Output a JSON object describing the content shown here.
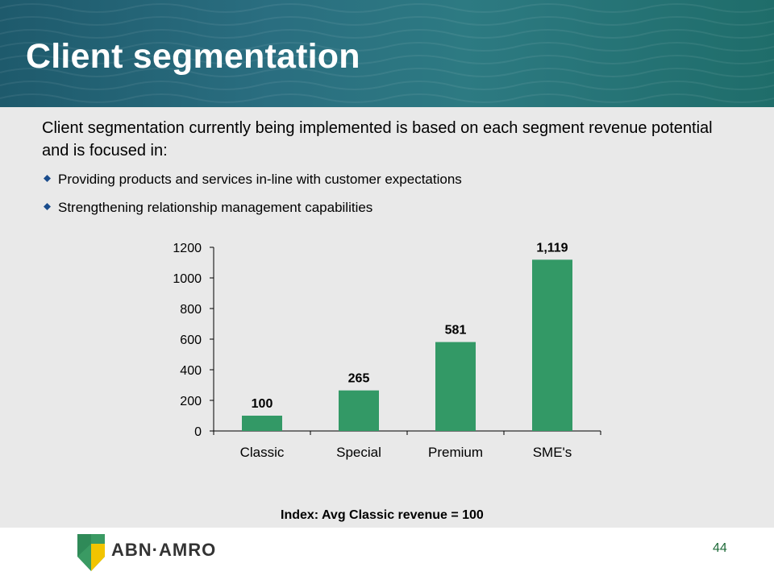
{
  "slide": {
    "title": "Client segmentation",
    "intro": "Client segmentation currently being implemented is based on each segment revenue potential and is focused in:",
    "bullets": [
      "Providing products and services in-line with customer expectations",
      "Strengthening relationship management capabilities"
    ],
    "caption": "Index: Avg Classic revenue = 100",
    "page_number": "44"
  },
  "brand": {
    "name": "ABN·AMRO",
    "logo_icon": "abn-amro-shield-icon"
  },
  "colors": {
    "header": "#1e5a6c",
    "content_background": "#e9e9e9",
    "bar": "#339966",
    "bullet": "#1a4c8c",
    "logo_green": "#3a9a63",
    "logo_yellow": "#f2c400"
  },
  "chart_data": {
    "type": "bar",
    "categories": [
      "Classic",
      "Special",
      "Premium",
      "SME's"
    ],
    "values": [
      100,
      265,
      581,
      1119
    ],
    "data_labels": [
      "100",
      "265",
      "581",
      "1,119"
    ],
    "yticks": [
      "0",
      "200",
      "400",
      "600",
      "800",
      "1000",
      "1200"
    ],
    "ylim": [
      0,
      1200
    ],
    "title": "",
    "xlabel": "",
    "ylabel": "",
    "grid": false,
    "legend": "none"
  }
}
